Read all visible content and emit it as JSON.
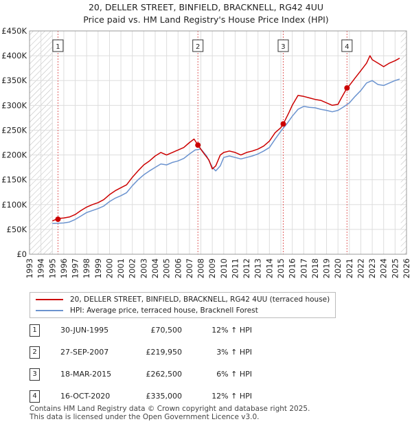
{
  "title_line1": "20, DELLER STREET, BINFIELD, BRACKNELL, RG42 4UU",
  "title_line2": "Price paid vs. HM Land Registry's House Price Index (HPI)",
  "chart_data": {
    "type": "line",
    "xlim": [
      1993,
      2026
    ],
    "ylim": [
      0,
      450000
    ],
    "x_ticks": [
      1993,
      1994,
      1995,
      1996,
      1997,
      1998,
      1999,
      2000,
      2001,
      2002,
      2003,
      2004,
      2005,
      2006,
      2007,
      2008,
      2009,
      2010,
      2011,
      2012,
      2013,
      2014,
      2015,
      2016,
      2017,
      2018,
      2019,
      2020,
      2021,
      2022,
      2023,
      2024,
      2025,
      2026
    ],
    "y_ticks": [
      0,
      50000,
      100000,
      150000,
      200000,
      250000,
      300000,
      350000,
      400000,
      450000
    ],
    "y_tick_labels": [
      "£0",
      "£50K",
      "£100K",
      "£150K",
      "£200K",
      "£250K",
      "£300K",
      "£350K",
      "£400K",
      "£450K"
    ],
    "hatched_before": 1995.0,
    "hatched_after": 2025.5,
    "series": [
      {
        "name": "20, DELLER STREET, BINFIELD, BRACKNELL, RG42 4UU (terraced house)",
        "color": "#cc0000",
        "x": [
          1995.0,
          1995.5,
          1996.0,
          1996.5,
          1997.0,
          1997.5,
          1998.0,
          1998.5,
          1999.0,
          1999.5,
          2000.0,
          2000.5,
          2001.0,
          2001.5,
          2002.0,
          2002.5,
          2003.0,
          2003.5,
          2004.0,
          2004.5,
          2005.0,
          2005.5,
          2006.0,
          2006.5,
          2007.0,
          2007.4,
          2007.74,
          2008.2,
          2008.7,
          2009.0,
          2009.3,
          2009.7,
          2010.0,
          2010.5,
          2011.0,
          2011.5,
          2012.0,
          2012.5,
          2013.0,
          2013.5,
          2014.0,
          2014.5,
          2015.0,
          2015.21,
          2015.7,
          2016.0,
          2016.5,
          2017.0,
          2017.5,
          2018.0,
          2018.5,
          2019.0,
          2019.5,
          2020.0,
          2020.3,
          2020.79,
          2021.0,
          2021.5,
          2022.0,
          2022.5,
          2022.8,
          2023.0,
          2023.5,
          2024.0,
          2024.5,
          2025.0,
          2025.4
        ],
        "y": [
          67000,
          72000,
          73000,
          75000,
          80000,
          88000,
          95000,
          100000,
          104000,
          110000,
          120000,
          128000,
          134000,
          140000,
          155000,
          168000,
          180000,
          188000,
          198000,
          205000,
          200000,
          205000,
          210000,
          215000,
          225000,
          232000,
          219950,
          205000,
          190000,
          172000,
          178000,
          200000,
          205000,
          208000,
          205000,
          200000,
          205000,
          208000,
          212000,
          218000,
          228000,
          245000,
          255000,
          262500,
          285000,
          300000,
          320000,
          318000,
          315000,
          312000,
          310000,
          305000,
          300000,
          302000,
          315000,
          335000,
          340000,
          355000,
          370000,
          385000,
          400000,
          392000,
          385000,
          378000,
          385000,
          390000,
          395000
        ]
      },
      {
        "name": "HPI: Average price, terraced house, Bracknell Forest",
        "color": "#6b93cf",
        "x": [
          1995.0,
          1995.5,
          1996.0,
          1996.5,
          1997.0,
          1997.5,
          1998.0,
          1998.5,
          1999.0,
          1999.5,
          2000.0,
          2000.5,
          2001.0,
          2001.5,
          2002.0,
          2002.5,
          2003.0,
          2003.5,
          2004.0,
          2004.5,
          2005.0,
          2005.5,
          2006.0,
          2006.5,
          2007.0,
          2007.5,
          2008.0,
          2008.5,
          2009.0,
          2009.3,
          2009.7,
          2010.0,
          2010.5,
          2011.0,
          2011.5,
          2012.0,
          2012.5,
          2013.0,
          2013.5,
          2014.0,
          2014.5,
          2015.0,
          2015.5,
          2016.0,
          2016.5,
          2017.0,
          2017.5,
          2018.0,
          2018.5,
          2019.0,
          2019.5,
          2020.0,
          2020.5,
          2021.0,
          2021.5,
          2022.0,
          2022.5,
          2023.0,
          2023.5,
          2024.0,
          2024.5,
          2025.0,
          2025.4
        ],
        "y": [
          62000,
          62500,
          63000,
          65000,
          70000,
          77000,
          84000,
          88000,
          92000,
          97000,
          106000,
          113000,
          118000,
          124000,
          138000,
          150000,
          160000,
          168000,
          175000,
          182000,
          180000,
          185000,
          188000,
          193000,
          202000,
          210000,
          212000,
          198000,
          175000,
          168000,
          178000,
          195000,
          198000,
          195000,
          192000,
          195000,
          198000,
          202000,
          208000,
          215000,
          232000,
          248000,
          262000,
          278000,
          292000,
          298000,
          296000,
          295000,
          292000,
          290000,
          287000,
          290000,
          297000,
          305000,
          318000,
          330000,
          345000,
          350000,
          342000,
          340000,
          345000,
          350000,
          353000
        ]
      }
    ],
    "sales": [
      {
        "label": "1",
        "x": 1995.49,
        "y": 70500
      },
      {
        "label": "2",
        "x": 2007.74,
        "y": 219950
      },
      {
        "label": "3",
        "x": 2015.21,
        "y": 262500
      },
      {
        "label": "4",
        "x": 2020.79,
        "y": 335000
      }
    ]
  },
  "legend": {
    "property": "20, DELLER STREET, BINFIELD, BRACKNELL, RG42 4UU (terraced house)",
    "hpi": "HPI: Average price, terraced house, Bracknell Forest"
  },
  "sales_table": [
    {
      "num": "1",
      "date": "30-JUN-1995",
      "price": "£70,500",
      "hpi": "12% ↑ HPI"
    },
    {
      "num": "2",
      "date": "27-SEP-2007",
      "price": "£219,950",
      "hpi": "3% ↑ HPI"
    },
    {
      "num": "3",
      "date": "18-MAR-2015",
      "price": "£262,500",
      "hpi": "6% ↑ HPI"
    },
    {
      "num": "4",
      "date": "16-OCT-2020",
      "price": "£335,000",
      "hpi": "12% ↑ HPI"
    }
  ],
  "footer_line1": "Contains HM Land Registry data © Crown copyright and database right 2025.",
  "footer_line2": "This data is licensed under the Open Government Licence v3.0."
}
